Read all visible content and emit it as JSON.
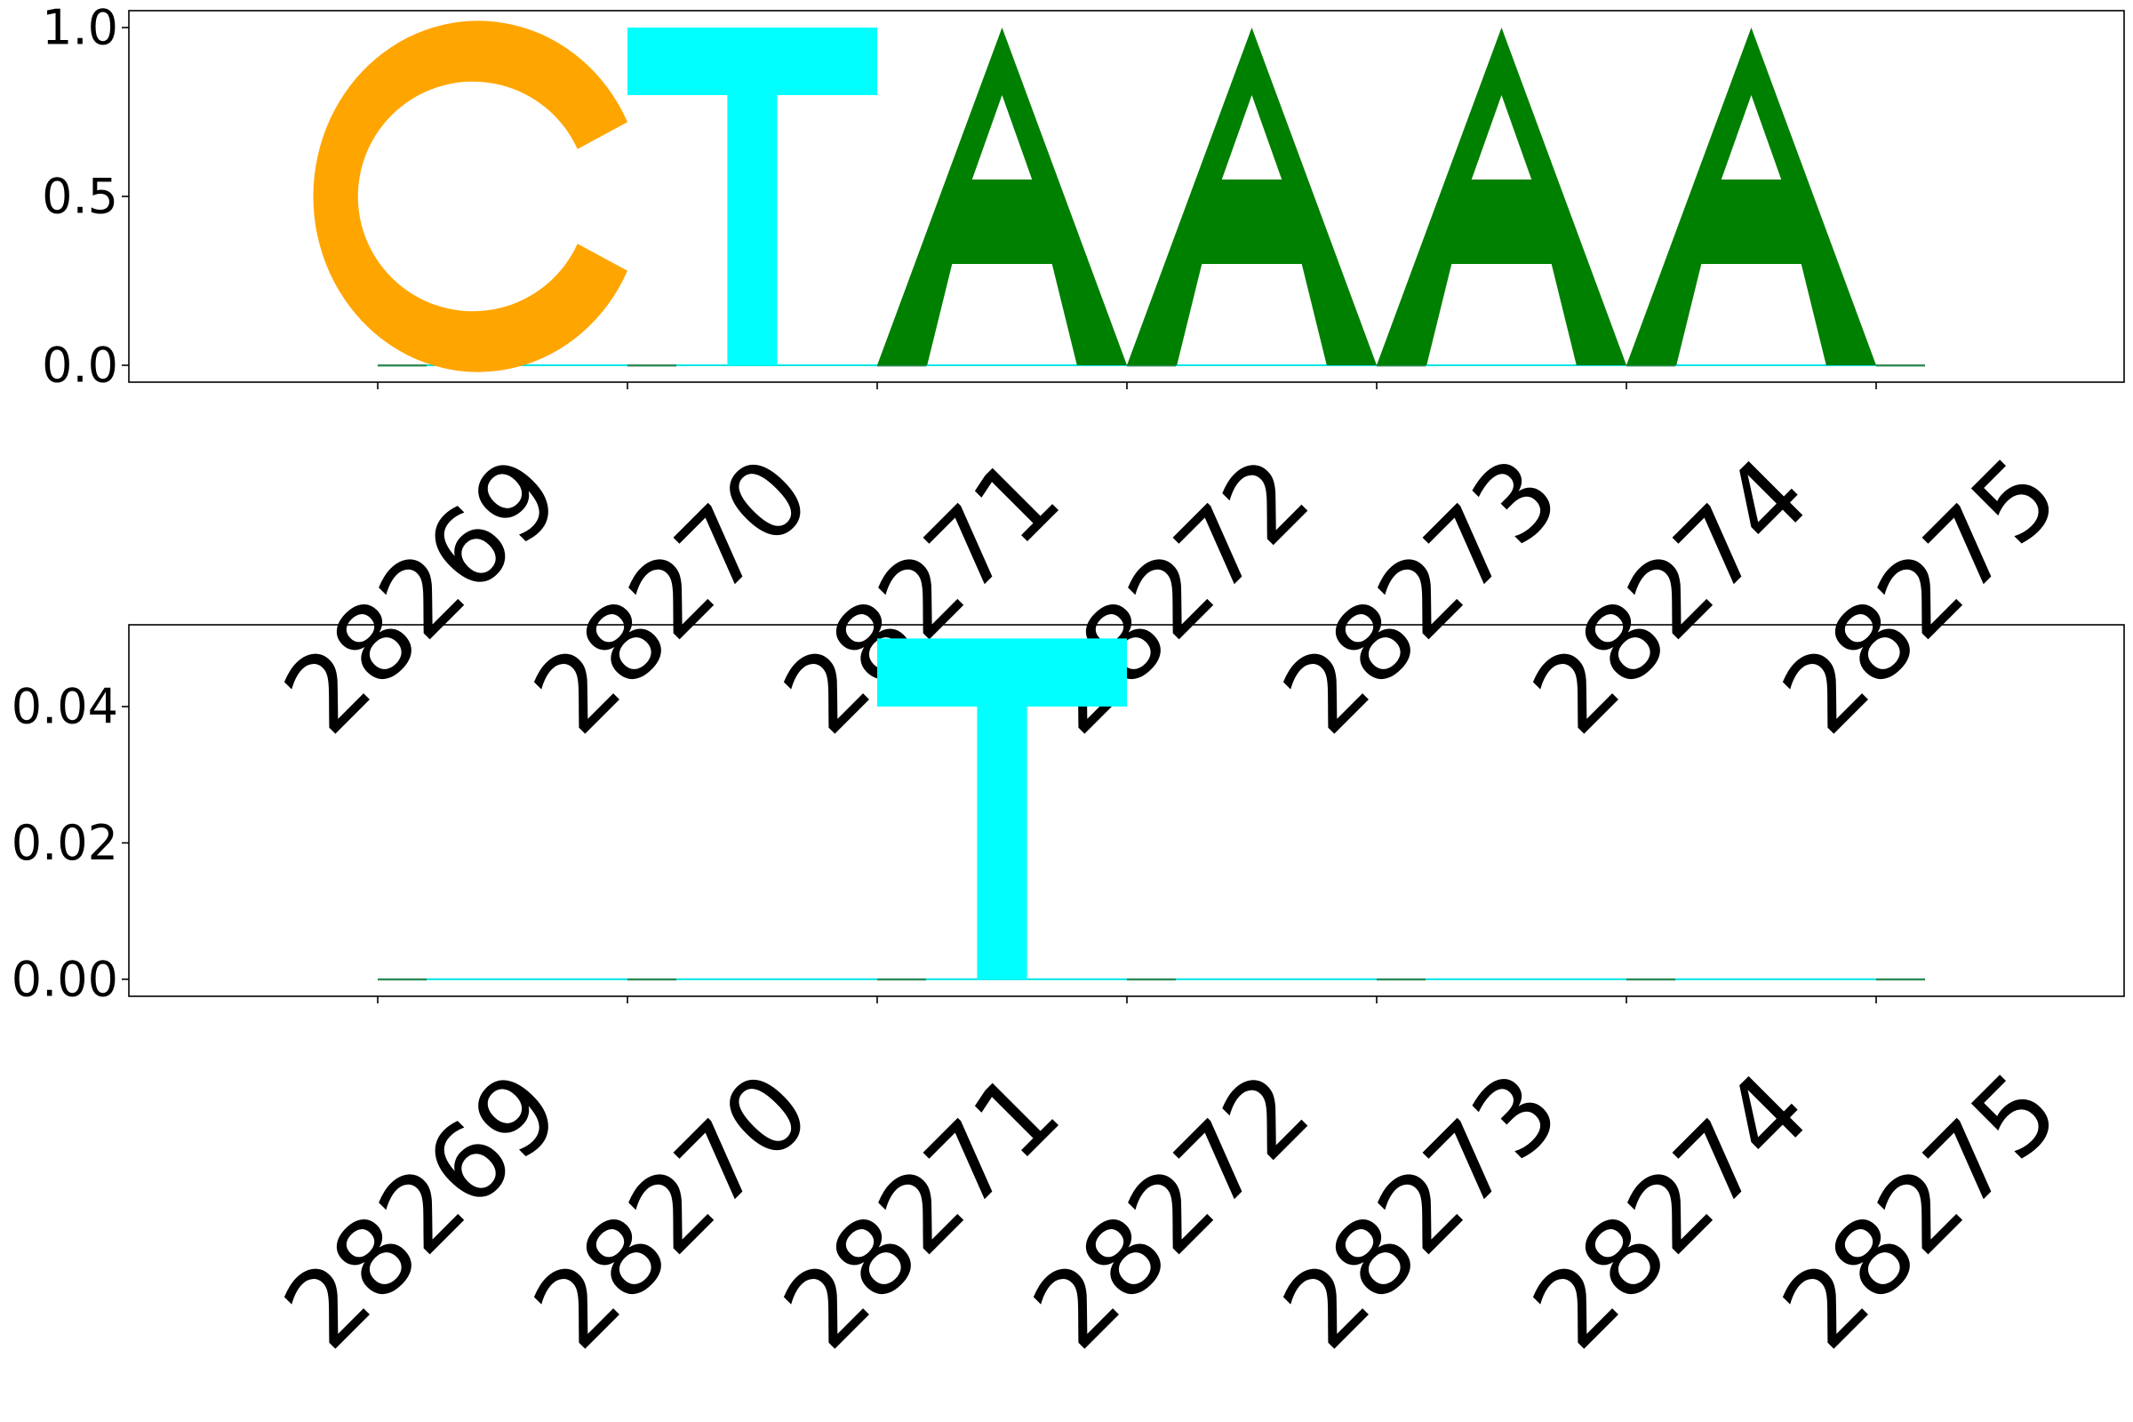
{
  "colors": {
    "A": "#008000",
    "C": "#ffa500",
    "G": "#ffa500",
    "T": "#00ffff",
    "axis": "#000000",
    "background": "#ffffff"
  },
  "chart_data": [
    {
      "type": "sequence-logo",
      "positions": [
        "28269",
        "28270",
        "28271",
        "28272",
        "28273",
        "28274",
        "28275"
      ],
      "ylim": [
        -0.05,
        1.05
      ],
      "yticks": [
        "0.0",
        "0.5",
        "1.0"
      ],
      "letters": [
        {
          "position": "28269",
          "letter": "C",
          "height": 1.0
        },
        {
          "position": "28270",
          "letter": "T",
          "height": 1.0
        },
        {
          "position": "28271",
          "letter": "A",
          "height": 1.0
        },
        {
          "position": "28272",
          "letter": "A",
          "height": 1.0
        },
        {
          "position": "28273",
          "letter": "A",
          "height": 1.0
        },
        {
          "position": "28274",
          "letter": "A",
          "height": 1.0
        }
      ],
      "grid": false
    },
    {
      "type": "sequence-logo",
      "positions": [
        "28269",
        "28270",
        "28271",
        "28272",
        "28273",
        "28274",
        "28275"
      ],
      "ylim": [
        -0.0025,
        0.052
      ],
      "yticks": [
        "0.00",
        "0.02",
        "0.04"
      ],
      "letters": [
        {
          "position": "28271",
          "letter": "T",
          "height": 0.05
        }
      ],
      "grid": false
    }
  ]
}
